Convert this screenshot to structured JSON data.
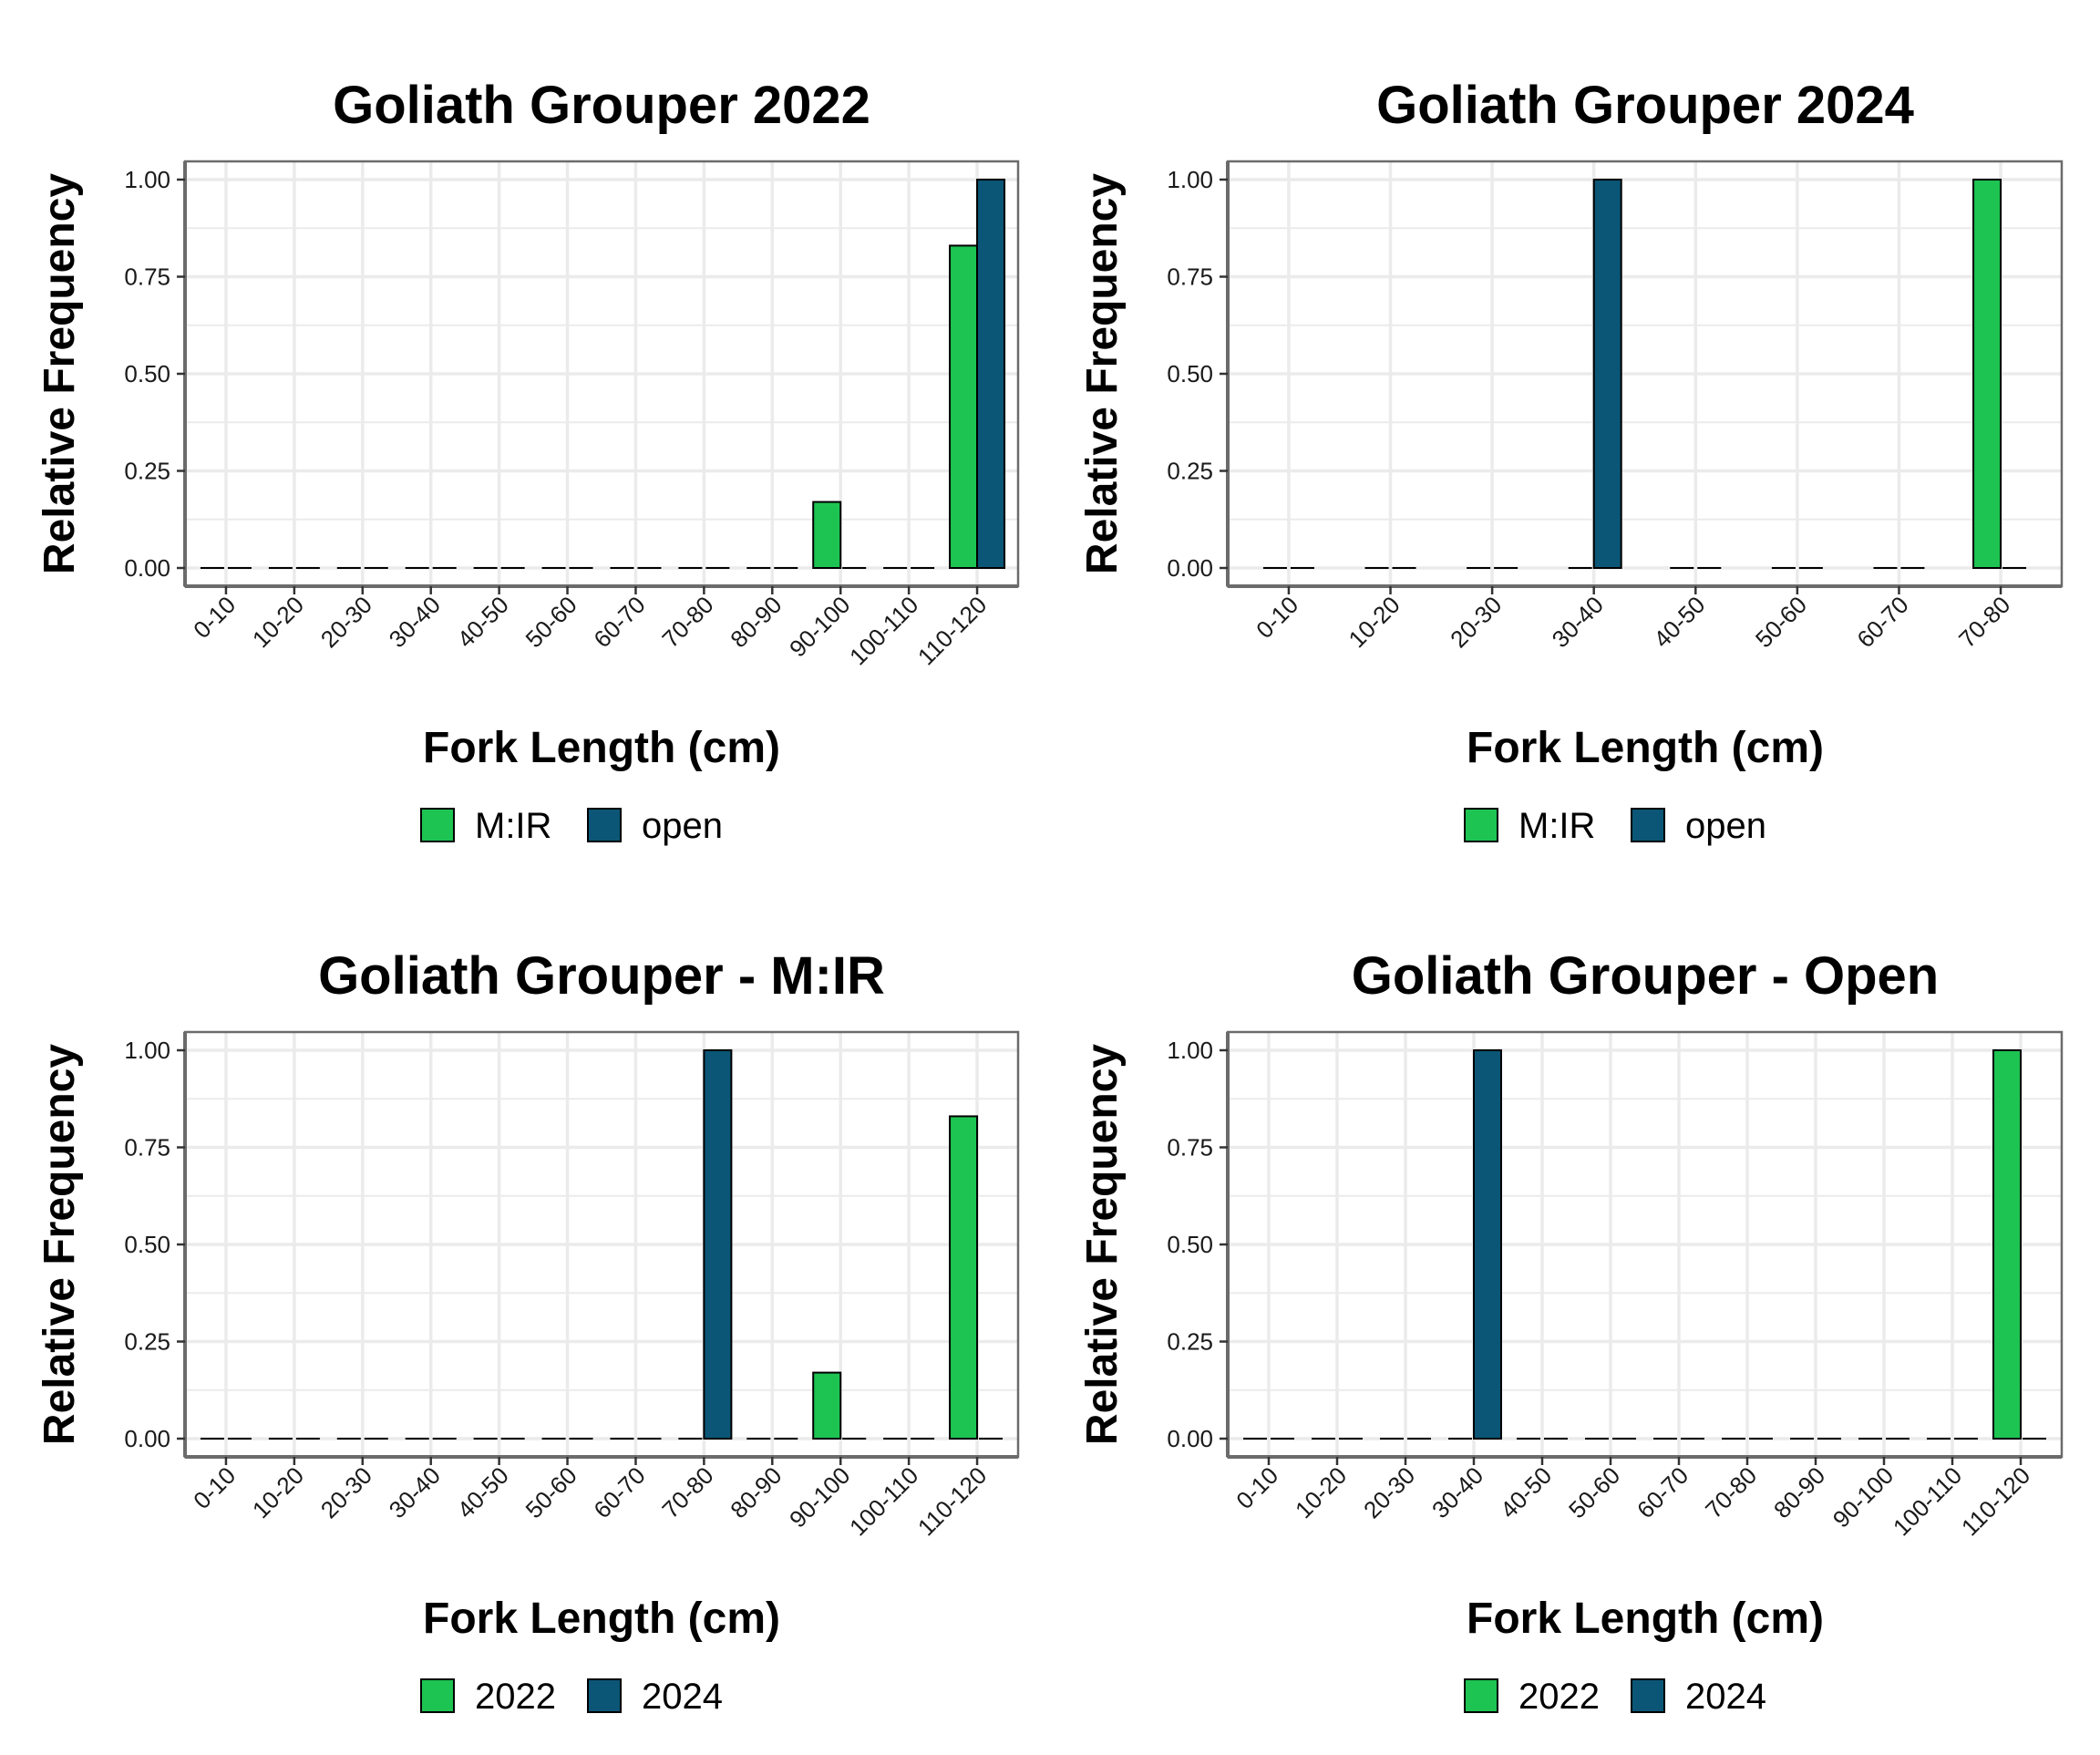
{
  "colors": {
    "green": "#1dc452",
    "blue": "#0b5676",
    "grid": "#ebebeb",
    "panel_border": "#6b6b6b",
    "axis_text": "#1a1a1a"
  },
  "chart_data": [
    {
      "type": "bar",
      "title": "Goliath Grouper 2022",
      "xlabel": "Fork Length (cm)",
      "ylabel": "Relative Frequency",
      "categories": [
        "0-10",
        "10-20",
        "20-30",
        "30-40",
        "40-50",
        "50-60",
        "60-70",
        "70-80",
        "80-90",
        "90-100",
        "100-110",
        "110-120"
      ],
      "yticks": [
        "0.00",
        "0.25",
        "0.50",
        "0.75",
        "1.00"
      ],
      "ylim": [
        0,
        1
      ],
      "grid": true,
      "legend": "bottom",
      "series": [
        {
          "name": "M:IR",
          "color_key": "green",
          "values": [
            0,
            0,
            0,
            0,
            0,
            0,
            0,
            0,
            0,
            0.17,
            0,
            0.83
          ]
        },
        {
          "name": "open",
          "color_key": "blue",
          "values": [
            0,
            0,
            0,
            0,
            0,
            0,
            0,
            0,
            0,
            0,
            0,
            1.0
          ]
        }
      ]
    },
    {
      "type": "bar",
      "title": "Goliath Grouper 2024",
      "xlabel": "Fork Length (cm)",
      "ylabel": "Relative Frequency",
      "categories": [
        "0-10",
        "10-20",
        "20-30",
        "30-40",
        "40-50",
        "50-60",
        "60-70",
        "70-80"
      ],
      "yticks": [
        "0.00",
        "0.25",
        "0.50",
        "0.75",
        "1.00"
      ],
      "ylim": [
        0,
        1
      ],
      "grid": true,
      "legend": "bottom",
      "series": [
        {
          "name": "M:IR",
          "color_key": "green",
          "values": [
            0,
            0,
            0,
            0,
            0,
            0,
            0,
            1.0
          ]
        },
        {
          "name": "open",
          "color_key": "blue",
          "values": [
            0,
            0,
            0,
            1.0,
            0,
            0,
            0,
            0
          ]
        }
      ]
    },
    {
      "type": "bar",
      "title": "Goliath Grouper - M:IR",
      "xlabel": "Fork Length (cm)",
      "ylabel": "Relative Frequency",
      "categories": [
        "0-10",
        "10-20",
        "20-30",
        "30-40",
        "40-50",
        "50-60",
        "60-70",
        "70-80",
        "80-90",
        "90-100",
        "100-110",
        "110-120"
      ],
      "yticks": [
        "0.00",
        "0.25",
        "0.50",
        "0.75",
        "1.00"
      ],
      "ylim": [
        0,
        1
      ],
      "grid": true,
      "legend": "bottom",
      "series": [
        {
          "name": "2022",
          "color_key": "green",
          "values": [
            0,
            0,
            0,
            0,
            0,
            0,
            0,
            0,
            0,
            0.17,
            0,
            0.83
          ]
        },
        {
          "name": "2024",
          "color_key": "blue",
          "values": [
            0,
            0,
            0,
            0,
            0,
            0,
            0,
            1.0,
            0,
            0,
            0,
            0
          ]
        }
      ]
    },
    {
      "type": "bar",
      "title": "Goliath Grouper - Open",
      "xlabel": "Fork Length (cm)",
      "ylabel": "Relative Frequency",
      "categories": [
        "0-10",
        "10-20",
        "20-30",
        "30-40",
        "40-50",
        "50-60",
        "60-70",
        "70-80",
        "80-90",
        "90-100",
        "100-110",
        "110-120"
      ],
      "yticks": [
        "0.00",
        "0.25",
        "0.50",
        "0.75",
        "1.00"
      ],
      "ylim": [
        0,
        1
      ],
      "grid": true,
      "legend": "bottom",
      "series": [
        {
          "name": "2022",
          "color_key": "green",
          "values": [
            0,
            0,
            0,
            0,
            0,
            0,
            0,
            0,
            0,
            0,
            0,
            1.0
          ]
        },
        {
          "name": "2024",
          "color_key": "blue",
          "values": [
            0,
            0,
            0,
            1.0,
            0,
            0,
            0,
            0,
            0,
            0,
            0,
            0
          ]
        }
      ]
    }
  ]
}
